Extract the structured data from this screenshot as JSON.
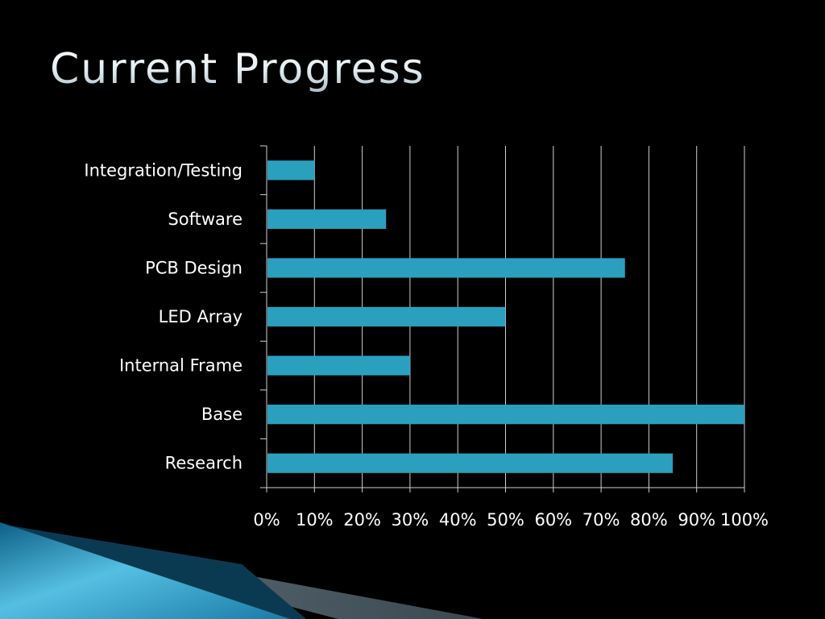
{
  "slide": {
    "title": "Current Progress"
  },
  "colors": {
    "background": "#000000",
    "bar": "#2b9fbe",
    "gridline": "#cfcfcf",
    "text": "#ffffff"
  },
  "chart_data": {
    "type": "bar",
    "orientation": "horizontal",
    "title": "",
    "xlabel": "",
    "ylabel": "",
    "categories": [
      "Research",
      "Base",
      "Internal Frame",
      "LED Array",
      "PCB Design",
      "Software",
      "Integration/Testing"
    ],
    "values": [
      85,
      100,
      30,
      50,
      75,
      25,
      10
    ],
    "xlim": [
      0,
      100
    ],
    "xticks": [
      0,
      10,
      20,
      30,
      40,
      50,
      60,
      70,
      80,
      90,
      100
    ],
    "tick_labels": [
      "0%",
      "10%",
      "20%",
      "30%",
      "40%",
      "50%",
      "60%",
      "70%",
      "80%",
      "90%",
      "100%"
    ],
    "grid": true,
    "legend": "none"
  }
}
